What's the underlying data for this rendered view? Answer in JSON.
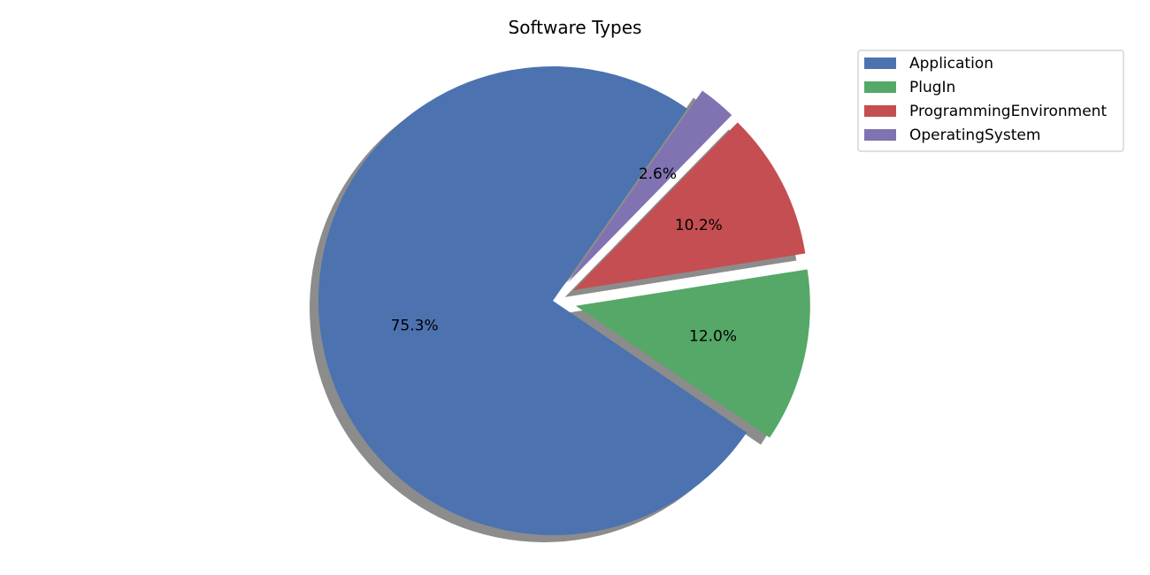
{
  "chart_data": {
    "type": "pie",
    "title": "Software Types",
    "categories": [
      "Application",
      "PlugIn",
      "ProgrammingEnvironment",
      "OperatingSystem"
    ],
    "values": [
      75.3,
      12.0,
      10.2,
      2.6
    ],
    "value_labels": [
      "75.3%",
      "12.0%",
      "10.2%",
      "2.6%"
    ],
    "colors": [
      "#4c72b0",
      "#55a868",
      "#c44e52",
      "#8172b2"
    ],
    "exploded": [
      false,
      true,
      true,
      true
    ],
    "shadow": true,
    "legend_position": "top-right"
  }
}
